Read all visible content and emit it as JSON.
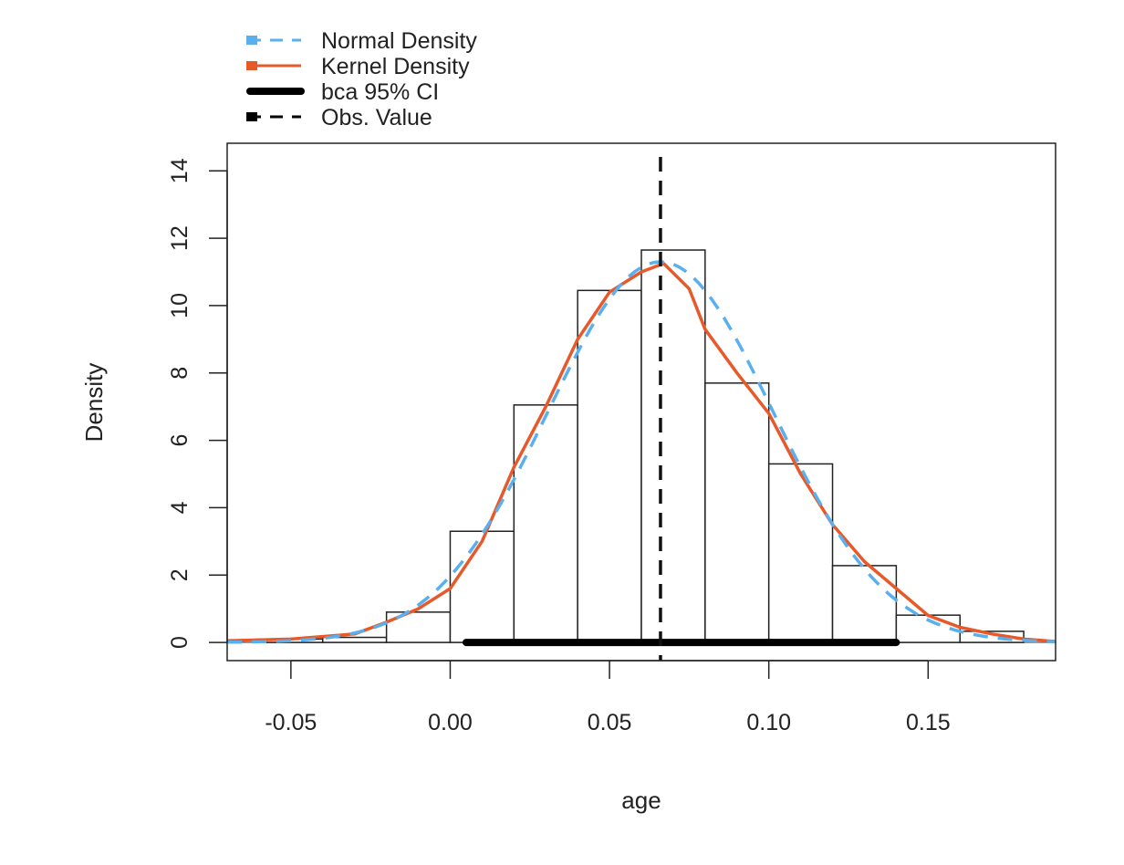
{
  "chart_data": {
    "type": "histogram",
    "xlabel": "age",
    "ylabel": "Density",
    "xlim": [
      -0.07,
      0.19
    ],
    "ylim": [
      -0.54,
      14.82
    ],
    "xticks": [
      -0.05,
      0.0,
      0.05,
      0.1,
      0.15
    ],
    "xtick_labels": [
      "-0.05",
      "0.00",
      "0.05",
      "0.10",
      "0.15"
    ],
    "yticks": [
      0,
      2,
      4,
      6,
      8,
      10,
      12,
      14
    ],
    "ytick_labels": [
      "0",
      "2",
      "4",
      "6",
      "8",
      "10",
      "12",
      "14"
    ],
    "bins": {
      "edges": [
        -0.06,
        -0.04,
        -0.02,
        0.0,
        0.02,
        0.04,
        0.06,
        0.08,
        0.1,
        0.12,
        0.14,
        0.16,
        0.18
      ],
      "density": [
        0.1,
        0.15,
        0.9,
        3.3,
        7.05,
        10.45,
        11.65,
        7.7,
        5.3,
        2.28,
        0.81,
        0.33
      ]
    },
    "normal_density": {
      "mean": 0.066,
      "sd": 0.0353,
      "color": "#5aafef"
    },
    "kernel_density": {
      "color": "#e8592a",
      "x": [
        -0.07,
        -0.05,
        -0.03,
        -0.02,
        -0.01,
        0,
        0.01,
        0.02,
        0.03,
        0.04,
        0.05,
        0.06,
        0.067,
        0.075,
        0.08,
        0.09,
        0.1,
        0.11,
        0.12,
        0.13,
        0.14,
        0.15,
        0.16,
        0.17,
        0.18,
        0.19
      ],
      "y": [
        0.05,
        0.1,
        0.25,
        0.6,
        1.0,
        1.6,
        3.0,
        5.2,
        7.0,
        9.0,
        10.4,
        11.0,
        11.25,
        10.5,
        9.3,
        8.0,
        6.8,
        5.0,
        3.5,
        2.4,
        1.6,
        0.8,
        0.45,
        0.25,
        0.1,
        0.03
      ]
    },
    "ci": {
      "lower": 0.005,
      "upper": 0.14
    },
    "observed_value": 0.066,
    "legend": {
      "placement": "top-left-outside",
      "entries": [
        "Normal Density",
        "Kernel Density",
        "bca 95% CI",
        "Obs. Value"
      ]
    }
  }
}
